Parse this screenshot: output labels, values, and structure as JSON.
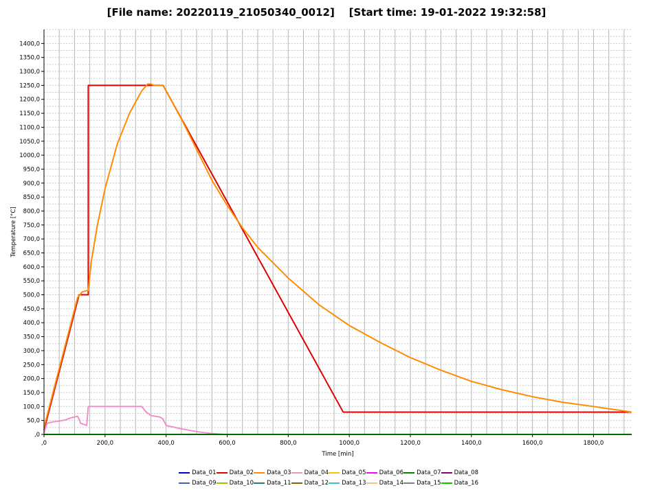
{
  "chart_data": {
    "type": "line",
    "title": "[File name: 20220119_21050340_0012]    [Start time: 19-01-2022 19:32:58]",
    "xlabel": "Time [min]",
    "ylabel": "Temperature [°C]",
    "xlim": [
      0,
      1925
    ],
    "ylim": [
      0,
      1450
    ],
    "x_ticks": [
      0,
      200,
      400,
      600,
      800,
      1000,
      1200,
      1400,
      1600,
      1800
    ],
    "x_tick_labels": [
      ",0",
      "200,0",
      "400,0",
      "600,0",
      "800,0",
      "1000,0",
      "1200,0",
      "1400,0",
      "1600,0",
      "1800,0"
    ],
    "y_ticks": [
      0,
      50,
      100,
      150,
      200,
      250,
      300,
      350,
      400,
      450,
      500,
      550,
      600,
      650,
      700,
      750,
      800,
      850,
      900,
      950,
      1000,
      1050,
      1100,
      1150,
      1200,
      1250,
      1300,
      1350,
      1400
    ],
    "y_tick_labels": [
      ",0",
      "50,0",
      "100,0",
      "150,0",
      "200,0",
      "250,0",
      "300,0",
      "350,0",
      "400,0",
      "450,0",
      "500,0",
      "550,0",
      "600,0",
      "650,0",
      "700,0",
      "750,0",
      "800,0",
      "850,0",
      "900,0",
      "950,0",
      "1000,0",
      "1050,0",
      "1100,0",
      "1150,0",
      "1200,0",
      "1250,0",
      "1300,0",
      "1350,0",
      "1400,0"
    ],
    "grid": true,
    "legend_position": "bottom",
    "series": [
      {
        "name": "Data_01",
        "color": "#0000cc",
        "x": [],
        "y": []
      },
      {
        "name": "Data_02",
        "color": "#dd0000",
        "x": [
          0,
          115,
          115,
          145,
          145,
          390,
          980,
          1925
        ],
        "y": [
          15,
          500,
          500,
          500,
          1250,
          1250,
          80,
          80
        ]
      },
      {
        "name": "Data_03",
        "color": "#ff8c00",
        "x": [
          0,
          110,
          125,
          140,
          145,
          155,
          175,
          200,
          240,
          280,
          320,
          340,
          350,
          360,
          390,
          450,
          500,
          550,
          600,
          650,
          700,
          800,
          900,
          1000,
          1100,
          1200,
          1300,
          1400,
          1500,
          1600,
          1700,
          1800,
          1925
        ],
        "y": [
          25,
          490,
          510,
          515,
          515,
          620,
          750,
          880,
          1040,
          1150,
          1230,
          1255,
          1255,
          1250,
          1250,
          1130,
          1020,
          910,
          820,
          740,
          670,
          560,
          465,
          390,
          330,
          275,
          230,
          190,
          160,
          135,
          115,
          100,
          80
        ]
      },
      {
        "name": "Data_04",
        "color": "#f090c8",
        "x": [
          0,
          10,
          30,
          50,
          70,
          90,
          110,
          115,
          120,
          140,
          145,
          150,
          200,
          300,
          320,
          335,
          350,
          380,
          390,
          400,
          450,
          500,
          550,
          590
        ],
        "y": [
          5,
          40,
          45,
          48,
          52,
          60,
          65,
          55,
          40,
          32,
          100,
          100,
          100,
          100,
          100,
          80,
          68,
          62,
          55,
          32,
          20,
          10,
          3,
          0
        ]
      },
      {
        "name": "Data_05",
        "color": "#ffc000",
        "x": [],
        "y": []
      },
      {
        "name": "Data_06",
        "color": "#ff00ff",
        "x": [],
        "y": []
      },
      {
        "name": "Data_07",
        "color": "#008000",
        "x": [],
        "y": []
      },
      {
        "name": "Data_08",
        "color": "#800080",
        "x": [],
        "y": []
      },
      {
        "name": "Data_09",
        "color": "#4060c0",
        "x": [],
        "y": []
      },
      {
        "name": "Data_10",
        "color": "#a0c000",
        "x": [],
        "y": []
      },
      {
        "name": "Data_11",
        "color": "#208080",
        "x": [],
        "y": []
      },
      {
        "name": "Data_12",
        "color": "#806000",
        "x": [],
        "y": []
      },
      {
        "name": "Data_13",
        "color": "#40c0c0",
        "x": [],
        "y": []
      },
      {
        "name": "Data_14",
        "color": "#f0c090",
        "x": [],
        "y": []
      },
      {
        "name": "Data_15",
        "color": "#808080",
        "x": [],
        "y": []
      },
      {
        "name": "Data_16",
        "color": "#00cc00",
        "x": [
          0,
          1925
        ],
        "y": [
          0,
          0
        ]
      }
    ]
  }
}
